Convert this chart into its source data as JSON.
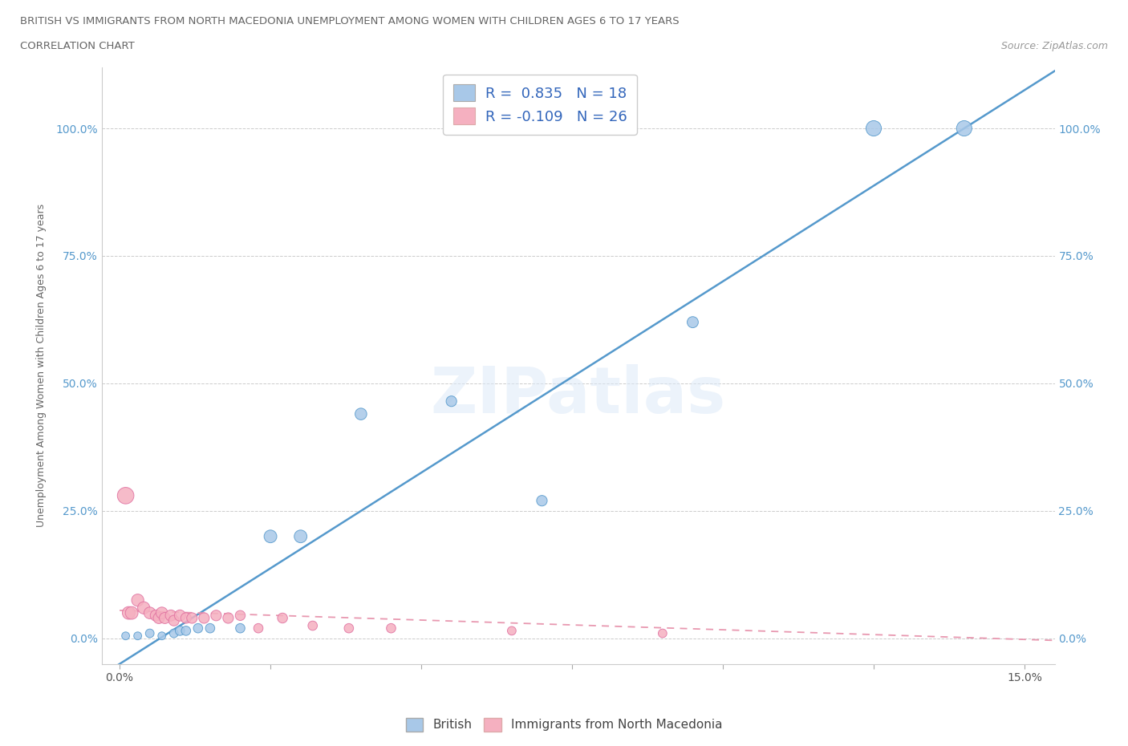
{
  "title_line1": "BRITISH VS IMMIGRANTS FROM NORTH MACEDONIA UNEMPLOYMENT AMONG WOMEN WITH CHILDREN AGES 6 TO 17 YEARS",
  "title_line2": "CORRELATION CHART",
  "source": "Source: ZipAtlas.com",
  "ylabel": "Unemployment Among Women with Children Ages 6 to 17 years",
  "british_R": 0.835,
  "british_N": 18,
  "north_mac_R": -0.109,
  "north_mac_N": 26,
  "british_color": "#a8c8e8",
  "north_mac_color": "#f5b0c0",
  "british_edge_color": "#5599cc",
  "north_mac_edge_color": "#e070a0",
  "british_line_color": "#5599cc",
  "north_mac_line_color": "#e898b0",
  "legend_label_british": "British",
  "legend_label_north_mac": "Immigrants from North Macedonia",
  "watermark": "ZIPatlas",
  "british_scatter_x": [
    0.1,
    0.3,
    0.5,
    0.7,
    0.9,
    1.0,
    1.1,
    1.3,
    1.5,
    2.0,
    2.5,
    3.0,
    4.0,
    5.5,
    7.0,
    9.5,
    12.5,
    14.0
  ],
  "british_scatter_y": [
    0.5,
    0.5,
    1.0,
    0.5,
    1.0,
    1.5,
    1.5,
    2.0,
    2.0,
    2.0,
    20.0,
    20.0,
    44.0,
    46.5,
    27.0,
    62.0,
    100.0,
    100.0
  ],
  "north_mac_scatter_x": [
    0.1,
    0.15,
    0.2,
    0.3,
    0.4,
    0.5,
    0.6,
    0.65,
    0.7,
    0.75,
    0.85,
    0.9,
    1.0,
    1.1,
    1.2,
    1.4,
    1.6,
    1.8,
    2.0,
    2.3,
    2.7,
    3.2,
    3.8,
    4.5,
    6.5,
    9.0
  ],
  "north_mac_scatter_y": [
    28.0,
    5.0,
    5.0,
    7.5,
    6.0,
    5.0,
    4.5,
    4.0,
    5.0,
    4.0,
    4.5,
    3.5,
    4.5,
    4.0,
    4.0,
    4.0,
    4.5,
    4.0,
    4.5,
    2.0,
    4.0,
    2.5,
    2.0,
    2.0,
    1.5,
    1.0
  ],
  "british_sizes": [
    50,
    50,
    60,
    50,
    60,
    70,
    70,
    70,
    70,
    70,
    130,
    130,
    110,
    90,
    90,
    100,
    190,
    190
  ],
  "north_mac_sizes": [
    220,
    130,
    130,
    120,
    120,
    110,
    100,
    100,
    110,
    100,
    100,
    90,
    100,
    90,
    90,
    90,
    90,
    90,
    80,
    70,
    80,
    70,
    70,
    70,
    60,
    60
  ],
  "xlim": [
    -0.3,
    15.5
  ],
  "ylim": [
    -5.0,
    112.0
  ],
  "x_ticks": [
    0.0,
    2.5,
    5.0,
    7.5,
    10.0,
    12.5,
    15.0
  ],
  "y_ticks": [
    0.0,
    25.0,
    50.0,
    75.0,
    100.0
  ],
  "y_tick_labels": [
    "0.0%",
    "25.0%",
    "50.0%",
    "75.0%",
    "100.0%"
  ],
  "x_tick_labels_show": [
    "0.0%",
    "",
    "",
    "",
    "",
    "",
    "15.0%"
  ]
}
